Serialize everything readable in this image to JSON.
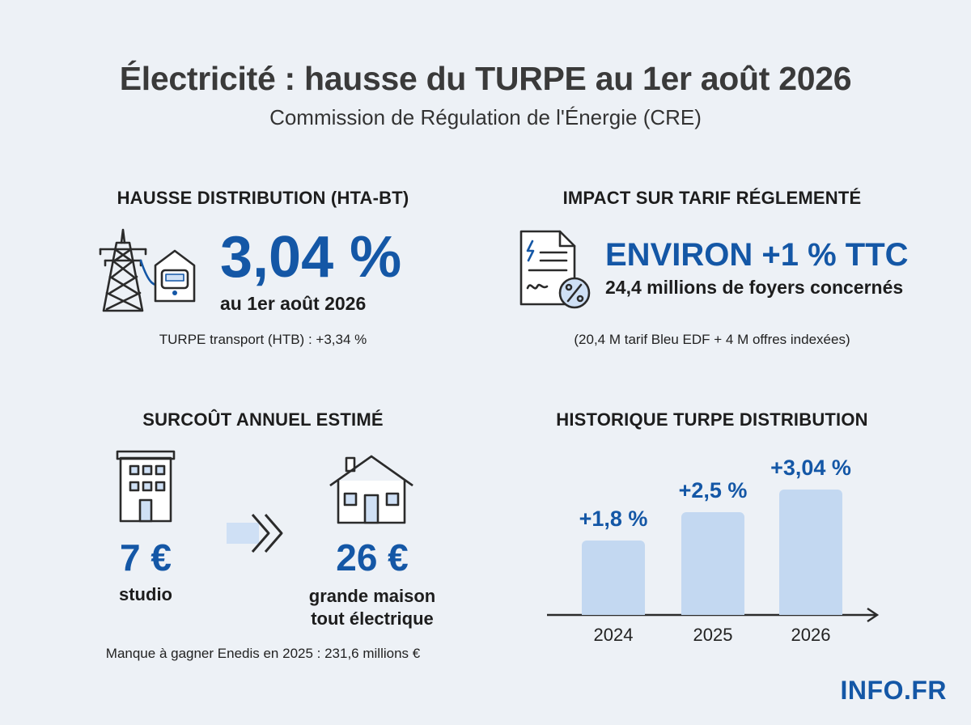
{
  "header": {
    "title": "Électricité : hausse du TURPE au 1er août 2026",
    "subtitle": "Commission de Régulation de l'Énergie (CRE)"
  },
  "distribution": {
    "heading": "HAUSSE DISTRIBUTION (HTA-BT)",
    "value": "3,04 %",
    "date": "au 1er août 2026",
    "note": "TURPE transport (HTB) : +3,34 %"
  },
  "impact": {
    "heading": "IMPACT SUR TARIF RÉGLEMENTÉ",
    "value": "ENVIRON +1 % TTC",
    "households": "24,4 millions de foyers concernés",
    "note": "(20,4 M tarif Bleu EDF + 4 M offres indexées)"
  },
  "surcout": {
    "heading": "SURCOÛT ANNUEL ESTIMÉ",
    "low_value": "7 €",
    "low_label": "studio",
    "high_value": "26 €",
    "high_label_line1": "grande maison",
    "high_label_line2": "tout électrique",
    "note": "Manque à gagner Enedis en 2025 : 231,6 millions €"
  },
  "historique": {
    "heading": "HISTORIQUE TURPE DISTRIBUTION"
  },
  "chart_data": {
    "type": "bar",
    "categories": [
      "2024",
      "2025",
      "2026"
    ],
    "values": [
      1.8,
      2.5,
      3.04
    ],
    "data_labels": [
      "+1,8 %",
      "+2,5 %",
      "+3,04 %"
    ],
    "title": "HISTORIQUE TURPE DISTRIBUTION",
    "xlabel": "",
    "ylabel": "",
    "ylim": [
      0,
      3.5
    ],
    "grid": false,
    "bar_color": "#c3d8f1",
    "label_color": "#1457a6"
  },
  "brand": {
    "logo": "INFO.FR",
    "accent": "#1457a6"
  }
}
